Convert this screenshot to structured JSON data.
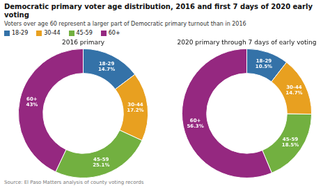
{
  "title": "Democratic primary voter age distribution, 2016 and first 7 days of 2020 early voting",
  "subtitle": "Voters over age 60 represent a larger part of Democratic primary turnout than in 2016",
  "legend": "top-left",
  "annotations": [
    "Source: El Paso Matters analysis of county voting records"
  ],
  "chart_data": [
    {
      "type": "doughnut",
      "title": "2016 primary",
      "categories": [
        "18-29",
        "30-44",
        "45-59",
        "60+"
      ],
      "values": [
        14.7,
        17.2,
        25.1,
        43.0
      ],
      "value_labels": [
        "14.7%",
        "17.2%",
        "25.1%",
        "43%"
      ],
      "colors": [
        "#3472a8",
        "#e8a020",
        "#72b040",
        "#952880"
      ],
      "data_labels": true
    },
    {
      "type": "doughnut",
      "title": "2020 primary through 7 days of early voting",
      "categories": [
        "18-29",
        "30-44",
        "45-59",
        "60+"
      ],
      "values": [
        10.5,
        14.7,
        18.5,
        56.3
      ],
      "value_labels": [
        "10.5%",
        "14.7%",
        "18.5%",
        "56.3%"
      ],
      "colors": [
        "#3472a8",
        "#e8a020",
        "#72b040",
        "#952880"
      ],
      "data_labels": true
    }
  ]
}
